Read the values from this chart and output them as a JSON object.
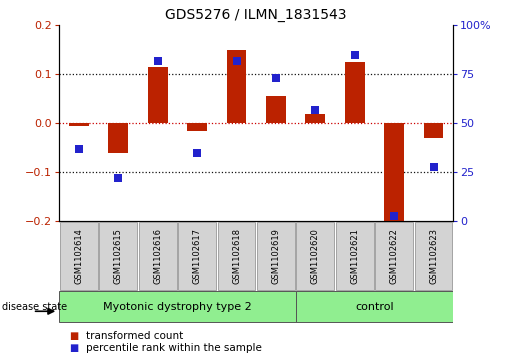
{
  "title": "GDS5276 / ILMN_1831543",
  "samples": [
    "GSM1102614",
    "GSM1102615",
    "GSM1102616",
    "GSM1102617",
    "GSM1102618",
    "GSM1102619",
    "GSM1102620",
    "GSM1102621",
    "GSM1102622",
    "GSM1102623"
  ],
  "transformed_count": [
    -0.005,
    -0.06,
    0.115,
    -0.015,
    0.15,
    0.055,
    0.02,
    0.125,
    -0.21,
    -0.03
  ],
  "percentile_rank": [
    37,
    22,
    82,
    35,
    82,
    73,
    57,
    85,
    3,
    28
  ],
  "group1_label": "Myotonic dystrophy type 2",
  "group1_count": 6,
  "group2_label": "control",
  "group2_count": 4,
  "group_color": "#90ee90",
  "disease_state_label": "disease state",
  "ylim_left": [
    -0.2,
    0.2
  ],
  "ylim_right": [
    0,
    100
  ],
  "yticks_left": [
    -0.2,
    -0.1,
    0.0,
    0.1,
    0.2
  ],
  "yticks_right": [
    0,
    25,
    50,
    75,
    100
  ],
  "ytick_labels_right": [
    "0",
    "25",
    "50",
    "75",
    "100%"
  ],
  "bar_color": "#bb2200",
  "dot_color": "#2222cc",
  "zero_line_color": "#cc0000",
  "grid_color": "#111111",
  "bg_color": "#ffffff",
  "sample_box_color": "#d3d3d3",
  "legend_bar_label": "transformed count",
  "legend_dot_label": "percentile rank within the sample",
  "title_fontsize": 10,
  "tick_fontsize": 8,
  "sample_fontsize": 6,
  "label_fontsize": 8,
  "legend_fontsize": 7.5,
  "bar_width": 0.5,
  "dot_size": 28
}
